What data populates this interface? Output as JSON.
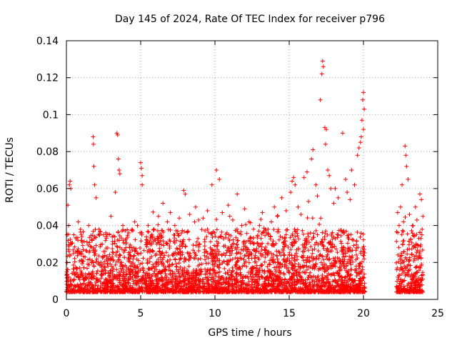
{
  "chart_data": {
    "type": "scatter",
    "title": "Day 145 of 2024, Rate Of TEC Index for receiver p796",
    "xlabel": "GPS time / hours",
    "ylabel": "ROTI / TECUs",
    "xlim": [
      0,
      25
    ],
    "ylim": [
      0,
      0.14
    ],
    "xticks": [
      0,
      5,
      10,
      15,
      20,
      25
    ],
    "xtick_labels": [
      "0",
      "5",
      "10",
      "15",
      "20",
      "25"
    ],
    "yticks": [
      0,
      0.02,
      0.04,
      0.06,
      0.08,
      0.1,
      0.12,
      0.14
    ],
    "ytick_labels": [
      "0",
      "0.02",
      "0.04",
      "0.06",
      "0.08",
      "0.1",
      "0.12",
      "0.14"
    ],
    "grid": true,
    "marker": "plus",
    "color": "#ff0000",
    "data_gap_hours": [
      20.1,
      22.2
    ],
    "series": [
      {
        "name": "ROTI",
        "points": [
          [
            0.1,
            0.051
          ],
          [
            0.2,
            0.062
          ],
          [
            0.25,
            0.064
          ],
          [
            0.3,
            0.06
          ],
          [
            0.8,
            0.042
          ],
          [
            1.8,
            0.088
          ],
          [
            1.82,
            0.084
          ],
          [
            1.85,
            0.072
          ],
          [
            1.9,
            0.062
          ],
          [
            2.0,
            0.055
          ],
          [
            3.4,
            0.09
          ],
          [
            3.45,
            0.089
          ],
          [
            3.5,
            0.076
          ],
          [
            3.55,
            0.07
          ],
          [
            3.6,
            0.068
          ],
          [
            3.3,
            0.058
          ],
          [
            5.0,
            0.074
          ],
          [
            5.05,
            0.071
          ],
          [
            5.1,
            0.067
          ],
          [
            5.1,
            0.062
          ],
          [
            6.5,
            0.052
          ],
          [
            7.0,
            0.047
          ],
          [
            7.9,
            0.059
          ],
          [
            8.0,
            0.057
          ],
          [
            8.7,
            0.05
          ],
          [
            9.8,
            0.062
          ],
          [
            10.1,
            0.07
          ],
          [
            10.3,
            0.065
          ],
          [
            10.9,
            0.051
          ],
          [
            11.5,
            0.057
          ],
          [
            12.0,
            0.049
          ],
          [
            13.2,
            0.047
          ],
          [
            14.0,
            0.05
          ],
          [
            14.5,
            0.055
          ],
          [
            15.1,
            0.058
          ],
          [
            15.2,
            0.064
          ],
          [
            15.3,
            0.066
          ],
          [
            15.4,
            0.062
          ],
          [
            16.0,
            0.066
          ],
          [
            16.2,
            0.069
          ],
          [
            16.5,
            0.076
          ],
          [
            16.6,
            0.081
          ],
          [
            16.8,
            0.062
          ],
          [
            17.1,
            0.108
          ],
          [
            17.2,
            0.122
          ],
          [
            17.25,
            0.129
          ],
          [
            17.3,
            0.126
          ],
          [
            17.4,
            0.093
          ],
          [
            17.5,
            0.092
          ],
          [
            17.45,
            0.084
          ],
          [
            17.6,
            0.07
          ],
          [
            17.7,
            0.067
          ],
          [
            18.1,
            0.06
          ],
          [
            18.6,
            0.09
          ],
          [
            18.8,
            0.065
          ],
          [
            19.2,
            0.07
          ],
          [
            19.6,
            0.078
          ],
          [
            19.7,
            0.082
          ],
          [
            19.8,
            0.085
          ],
          [
            19.9,
            0.097
          ],
          [
            20.0,
            0.112
          ],
          [
            19.95,
            0.108
          ],
          [
            20.05,
            0.103
          ],
          [
            20.0,
            0.092
          ],
          [
            19.85,
            0.088
          ],
          [
            22.3,
            0.047
          ],
          [
            22.5,
            0.05
          ],
          [
            22.6,
            0.062
          ],
          [
            22.8,
            0.083
          ],
          [
            22.85,
            0.078
          ],
          [
            22.9,
            0.072
          ],
          [
            23.0,
            0.065
          ],
          [
            23.5,
            0.05
          ],
          [
            23.8,
            0.057
          ],
          [
            23.9,
            0.054
          ],
          [
            24.0,
            0.045
          ],
          [
            0.05,
            0.035
          ],
          [
            0.15,
            0.04
          ],
          [
            0.5,
            0.035
          ],
          [
            1.0,
            0.032
          ],
          [
            1.5,
            0.04
          ],
          [
            2.2,
            0.038
          ],
          [
            2.5,
            0.035
          ],
          [
            3.0,
            0.045
          ],
          [
            3.8,
            0.04
          ],
          [
            4.2,
            0.036
          ],
          [
            4.6,
            0.042
          ],
          [
            5.5,
            0.04
          ],
          [
            5.9,
            0.038
          ],
          [
            6.2,
            0.045
          ],
          [
            6.8,
            0.042
          ],
          [
            7.3,
            0.04
          ],
          [
            7.6,
            0.044
          ],
          [
            8.3,
            0.046
          ],
          [
            8.9,
            0.043
          ],
          [
            9.2,
            0.044
          ],
          [
            9.5,
            0.048
          ],
          [
            10.5,
            0.047
          ],
          [
            11.0,
            0.045
          ],
          [
            11.2,
            0.043
          ],
          [
            11.8,
            0.04
          ],
          [
            12.3,
            0.042
          ],
          [
            12.6,
            0.038
          ],
          [
            13.0,
            0.04
          ],
          [
            13.5,
            0.036
          ],
          [
            13.8,
            0.042
          ],
          [
            14.2,
            0.045
          ],
          [
            14.8,
            0.048
          ],
          [
            15.6,
            0.05
          ],
          [
            15.8,
            0.046
          ],
          [
            16.3,
            0.053
          ],
          [
            16.9,
            0.056
          ],
          [
            17.8,
            0.06
          ],
          [
            18.0,
            0.052
          ],
          [
            18.3,
            0.055
          ],
          [
            18.9,
            0.058
          ],
          [
            19.1,
            0.054
          ],
          [
            19.4,
            0.062
          ],
          [
            22.4,
            0.04
          ],
          [
            22.7,
            0.042
          ],
          [
            23.1,
            0.046
          ],
          [
            23.3,
            0.04
          ],
          [
            23.6,
            0.043
          ],
          [
            23.95,
            0.038
          ]
        ]
      }
    ]
  }
}
